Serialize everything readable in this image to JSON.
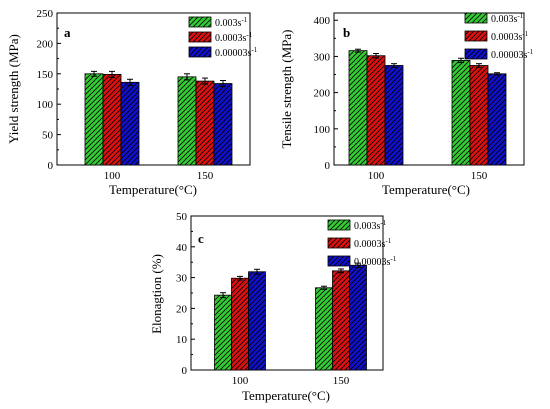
{
  "colors": {
    "green": "#33cc33",
    "red": "#dd1111",
    "blue": "#1111cc",
    "hatch": "#000000"
  },
  "chart_data": [
    {
      "type": "bar",
      "panel_label": "a",
      "categories": [
        "100",
        "150"
      ],
      "xlabel": "Temperature(°C)",
      "ylabel": "Yield strength (MPa)",
      "ylim": [
        0,
        250
      ],
      "yticks": [
        0,
        50,
        100,
        150,
        200,
        250
      ],
      "legend_position": "top-right",
      "series": [
        {
          "name": "0.003s",
          "sup": "-1",
          "color": "green",
          "values": [
            150,
            145
          ],
          "errors": [
            4,
            5
          ]
        },
        {
          "name": "0.0003s",
          "sup": "-1",
          "color": "red",
          "values": [
            149,
            138
          ],
          "errors": [
            5,
            5
          ]
        },
        {
          "name": "0.00003s",
          "sup": "-1",
          "color": "blue",
          "values": [
            136,
            134
          ],
          "errors": [
            5,
            5
          ]
        }
      ]
    },
    {
      "type": "bar",
      "panel_label": "b",
      "categories": [
        "100",
        "150"
      ],
      "xlabel": "Temperature(°C)",
      "ylabel": "Tensile strength (MPa)",
      "ylim": [
        0,
        420
      ],
      "yticks": [
        0,
        100,
        200,
        300,
        400
      ],
      "legend_position": "top-right",
      "series": [
        {
          "name": "0.003s",
          "sup": "-1",
          "color": "green",
          "values": [
            316,
            289
          ],
          "errors": [
            4,
            6
          ]
        },
        {
          "name": "0.0003s",
          "sup": "-1",
          "color": "red",
          "values": [
            302,
            275
          ],
          "errors": [
            6,
            5
          ]
        },
        {
          "name": "0.00003s",
          "sup": "-1",
          "color": "blue",
          "values": [
            275,
            252
          ],
          "errors": [
            5,
            3
          ]
        }
      ]
    },
    {
      "type": "bar",
      "panel_label": "c",
      "categories": [
        "100",
        "150"
      ],
      "xlabel": "Temperature(°C)",
      "ylabel": "Elonagtion (%)",
      "ylim": [
        0,
        50
      ],
      "yticks": [
        0,
        10,
        20,
        30,
        40,
        50
      ],
      "legend_position": "top-right",
      "series": [
        {
          "name": "0.003s",
          "sup": "-1",
          "color": "green",
          "values": [
            24.3,
            26.7
          ],
          "errors": [
            0.8,
            0.5
          ]
        },
        {
          "name": "0.0003s",
          "sup": "-1",
          "color": "red",
          "values": [
            29.8,
            32.2
          ],
          "errors": [
            0.6,
            0.6
          ]
        },
        {
          "name": "0.00003s",
          "sup": "-1",
          "color": "blue",
          "values": [
            31.9,
            34.0
          ],
          "errors": [
            0.8,
            0.7
          ]
        }
      ]
    }
  ]
}
